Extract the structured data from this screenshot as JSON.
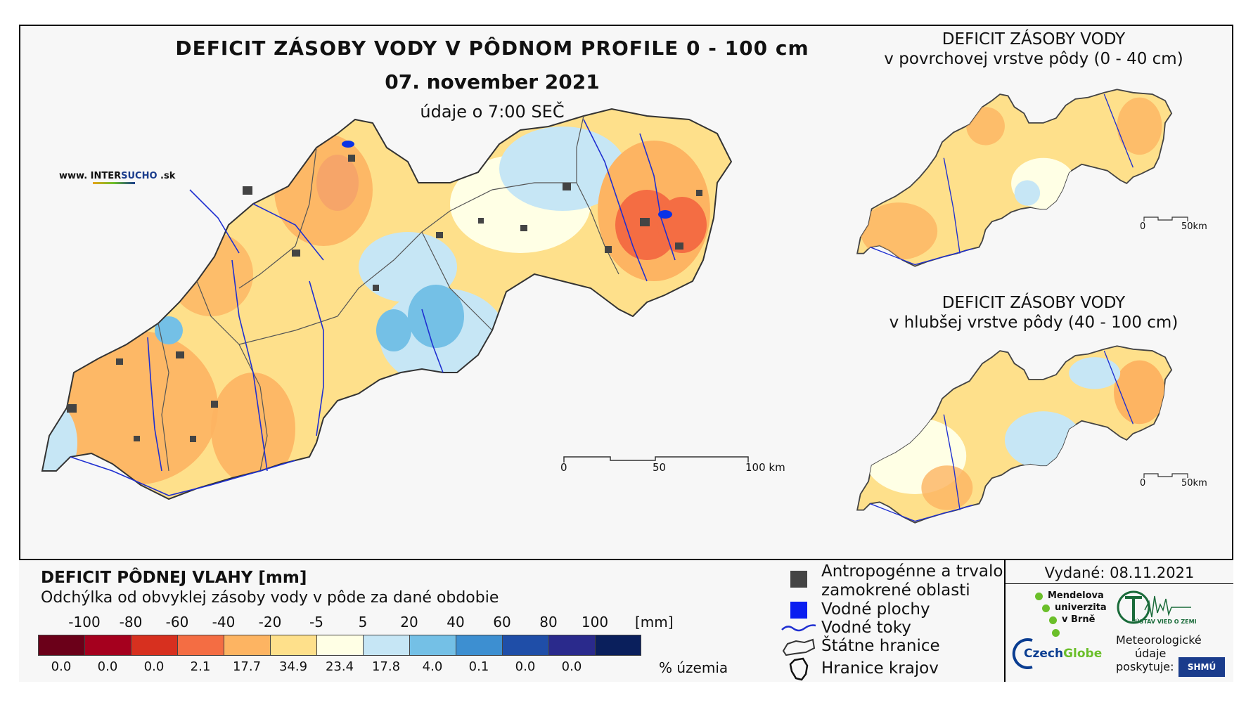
{
  "header": {
    "title": "DEFICIT ZÁSOBY VODY V PÔDNOM PROFILE 0 - 100 cm",
    "date": "07. november 2021",
    "time_note": "údaje o 7:00 SEČ",
    "brand_prefix": "www. INTER",
    "brand_sucho": "SUCHO",
    "brand_suffix": " .sk"
  },
  "inset_top": {
    "title_line1": "DEFICIT ZÁSOBY VODY",
    "title_line2": "v povrchovej vrstve pôdy (0 - 40 cm)",
    "scale_0": "0",
    "scale_50": "50km"
  },
  "inset_bottom": {
    "title_line1": "DEFICIT ZÁSOBY VODY",
    "title_line2": "v hlubšej vrstve pôdy (40 - 100 cm)",
    "scale_0": "0",
    "scale_50": "50km"
  },
  "main_scale": {
    "l0": "0",
    "l50": "50",
    "l100": "100 km"
  },
  "legend": {
    "title": "DEFICIT PÔDNEJ VLAHY [mm]",
    "subtitle": "Odchýlka od obvyklej zásoby vody v pôde za dané obdobie",
    "ticks": [
      "-100",
      "-80",
      "-60",
      "-40",
      "-20",
      "-5",
      "5",
      "20",
      "40",
      "60",
      "80",
      "100"
    ],
    "unit": "[mm]",
    "colors": [
      "#6b0019",
      "#a5001e",
      "#d7301f",
      "#f46d43",
      "#fdb462",
      "#fee08b",
      "#ffffe5",
      "#c6e6f5",
      "#74c0e6",
      "#3d8fd1",
      "#1f4ea8",
      "#2a2a8c",
      "#0a1f5c"
    ],
    "percentages": [
      "0.0",
      "0.0",
      "0.0",
      "2.1",
      "17.7",
      "34.9",
      "23.4",
      "17.8",
      "4.0",
      "0.1",
      "0.0",
      "0.0"
    ],
    "pct_label": "% územia"
  },
  "symbols": {
    "anthropogenic_line1": "Antropogénne a trvalo",
    "anthropogenic_line2": "zamokrené oblasti",
    "water_surfaces": "Vodné plochy",
    "water_courses": "Vodné toky",
    "state_border": "Štátne hranice",
    "region_border": "Hranice krajov"
  },
  "credits": {
    "issued": "Vydané: 08.11.2021",
    "mendel_1": "Mendelova",
    "mendel_2": "univerzita",
    "mendel_3": "v Brně",
    "uvgz": "ÚSTAV VIED O ZEMI",
    "czechglobe_czech": "Czech",
    "czechglobe_globe": "Globe",
    "meteo_1": "Meteorologické",
    "meteo_2": "údaje",
    "meteo_3": "poskytuje:",
    "shmu": "SHMÚ"
  }
}
